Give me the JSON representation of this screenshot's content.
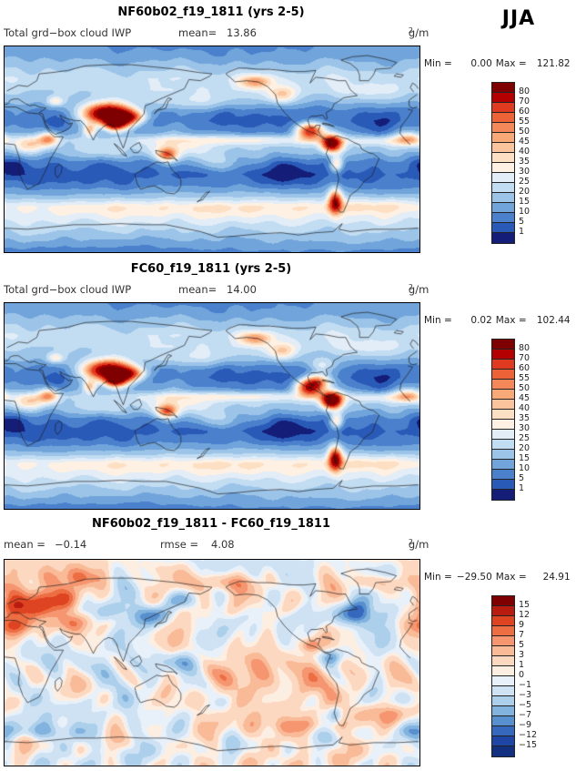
{
  "season": "JJA",
  "chart_data": [
    {
      "type": "heatmap",
      "title": "NF60b02_f19_1811 (yrs 2-5)",
      "var_label": "Total grd−box cloud IWP",
      "mean_label": "mean=",
      "mean": "13.86",
      "units_base": "g/m",
      "units_exp": "2",
      "min_label": "Min =",
      "min": "0.00",
      "max_label": "Max =",
      "max": "121.82",
      "lon_range": [
        0,
        360
      ],
      "lat_range": [
        -90,
        90
      ],
      "colorbar": {
        "levels": [
          80,
          70,
          60,
          55,
          50,
          45,
          40,
          35,
          30,
          25,
          20,
          15,
          10,
          5,
          1
        ],
        "tick_labels": [
          "80",
          "70",
          "60",
          "55",
          "50",
          "45",
          "40",
          "35",
          "30",
          "25",
          "20",
          "15",
          "10",
          "5",
          "1"
        ],
        "colors": [
          "#7f0000",
          "#b40000",
          "#e03a20",
          "#ee6238",
          "#f58858",
          "#f9a878",
          "#fbc49c",
          "#fddfc4",
          "#fef0e2",
          "#e2edf8",
          "#c2dcf2",
          "#9cc4e8",
          "#70a4da",
          "#4a80cc",
          "#2a5ab8",
          "#141e78"
        ]
      },
      "field_approx": {
        "seed": 1,
        "noise_amp": 3,
        "zonal": [
          [
            -90,
            8
          ],
          [
            -75,
            18
          ],
          [
            -62,
            26
          ],
          [
            -50,
            27
          ],
          [
            -40,
            16
          ],
          [
            -30,
            7
          ],
          [
            -22,
            4
          ],
          [
            -12,
            7
          ],
          [
            -5,
            14
          ],
          [
            0,
            18
          ],
          [
            8,
            20
          ],
          [
            15,
            12
          ],
          [
            25,
            6
          ],
          [
            32,
            7
          ],
          [
            42,
            16
          ],
          [
            52,
            22
          ],
          [
            62,
            24
          ],
          [
            72,
            18
          ],
          [
            82,
            12
          ],
          [
            90,
            10
          ]
        ],
        "hotspots": [
          [
            90,
            31,
            15,
            6,
            92
          ],
          [
            100,
            24,
            8,
            5,
            38
          ],
          [
            110,
            28,
            8,
            4,
            34
          ],
          [
            74,
            17,
            4,
            4,
            28
          ],
          [
            95,
            22,
            6,
            4,
            40
          ],
          [
            38,
            9,
            6,
            4,
            32
          ],
          [
            22,
            4,
            10,
            5,
            22
          ],
          [
            350,
            9,
            8,
            4,
            26
          ],
          [
            265,
            16,
            8,
            5,
            55
          ],
          [
            284,
            5,
            6,
            5,
            72
          ],
          [
            288,
            -13,
            4,
            5,
            30
          ],
          [
            287,
            -46,
            4,
            7,
            55
          ],
          [
            240,
            48,
            9,
            5,
            22
          ],
          [
            218,
            59,
            10,
            4,
            26
          ],
          [
            141,
            -5,
            6,
            4,
            36
          ],
          [
            44,
            42,
            5,
            3,
            18
          ],
          [
            200,
            8,
            60,
            3,
            12
          ],
          [
            330,
            7,
            20,
            3,
            10
          ],
          [
            185,
            -12,
            25,
            5,
            10
          ],
          [
            150,
            0,
            20,
            6,
            14
          ],
          [
            80,
            -3,
            15,
            5,
            8
          ],
          [
            165,
            42,
            25,
            6,
            8
          ],
          [
            315,
            50,
            20,
            6,
            8
          ],
          [
            90,
            -52,
            60,
            5,
            7
          ],
          [
            220,
            -52,
            60,
            5,
            7
          ],
          [
            320,
            -50,
            30,
            5,
            8
          ],
          [
            250,
            -18,
            25,
            9,
            -6
          ],
          [
            5,
            -14,
            12,
            6,
            -5
          ],
          [
            220,
            18,
            22,
            8,
            -5
          ],
          [
            320,
            20,
            15,
            7,
            -5
          ],
          [
            60,
            -25,
            18,
            7,
            -4
          ],
          [
            45,
            23,
            8,
            5,
            -4
          ]
        ]
      }
    },
    {
      "type": "heatmap",
      "title": "FC60_f19_1811 (yrs 2-5)",
      "var_label": "Total grd−box cloud IWP",
      "mean_label": "mean=",
      "mean": "14.00",
      "units_base": "g/m",
      "units_exp": "2",
      "min_label": "Min =",
      "min": "0.02",
      "max_label": "Max =",
      "max": "102.44",
      "lon_range": [
        0,
        360
      ],
      "lat_range": [
        -90,
        90
      ],
      "colorbar": {
        "levels": [
          80,
          70,
          60,
          55,
          50,
          45,
          40,
          35,
          30,
          25,
          20,
          15,
          10,
          5,
          1
        ],
        "tick_labels": [
          "80",
          "70",
          "60",
          "55",
          "50",
          "45",
          "40",
          "35",
          "30",
          "25",
          "20",
          "15",
          "10",
          "5",
          "1"
        ],
        "colors": [
          "#7f0000",
          "#b40000",
          "#e03a20",
          "#ee6238",
          "#f58858",
          "#f9a878",
          "#fbc49c",
          "#fddfc4",
          "#fef0e2",
          "#e2edf8",
          "#c2dcf2",
          "#9cc4e8",
          "#70a4da",
          "#4a80cc",
          "#2a5ab8",
          "#141e78"
        ]
      },
      "field_approx": {
        "seed": 1,
        "noise_amp": 3,
        "zonal": [
          [
            -90,
            8
          ],
          [
            -75,
            18
          ],
          [
            -62,
            26
          ],
          [
            -50,
            27
          ],
          [
            -40,
            16
          ],
          [
            -30,
            7
          ],
          [
            -22,
            4
          ],
          [
            -12,
            7
          ],
          [
            -5,
            14
          ],
          [
            0,
            18
          ],
          [
            8,
            20
          ],
          [
            15,
            12
          ],
          [
            25,
            6
          ],
          [
            32,
            7
          ],
          [
            42,
            16
          ],
          [
            52,
            22
          ],
          [
            62,
            24
          ],
          [
            72,
            18
          ],
          [
            82,
            12
          ],
          [
            90,
            10
          ]
        ],
        "hotspots": [
          [
            90,
            31,
            15,
            6,
            82
          ],
          [
            100,
            24,
            8,
            5,
            36
          ],
          [
            110,
            28,
            8,
            4,
            34
          ],
          [
            74,
            17,
            4,
            4,
            28
          ],
          [
            95,
            22,
            6,
            4,
            38
          ],
          [
            38,
            9,
            6,
            4,
            32
          ],
          [
            22,
            4,
            10,
            5,
            22
          ],
          [
            350,
            9,
            8,
            4,
            26
          ],
          [
            265,
            16,
            8,
            5,
            62
          ],
          [
            272,
            22,
            8,
            4,
            32
          ],
          [
            284,
            5,
            6,
            5,
            85
          ],
          [
            288,
            -13,
            4,
            5,
            30
          ],
          [
            287,
            -46,
            4,
            7,
            60
          ],
          [
            240,
            48,
            9,
            5,
            22
          ],
          [
            218,
            59,
            10,
            4,
            26
          ],
          [
            141,
            -5,
            6,
            4,
            36
          ],
          [
            44,
            42,
            5,
            3,
            18
          ],
          [
            275,
            35,
            8,
            5,
            18
          ],
          [
            200,
            8,
            60,
            3,
            12
          ],
          [
            330,
            7,
            20,
            3,
            10
          ],
          [
            185,
            -12,
            25,
            5,
            10
          ],
          [
            150,
            0,
            20,
            6,
            14
          ],
          [
            80,
            -3,
            15,
            5,
            8
          ],
          [
            165,
            42,
            25,
            6,
            8
          ],
          [
            315,
            50,
            20,
            6,
            8
          ],
          [
            90,
            -52,
            60,
            5,
            7
          ],
          [
            220,
            -52,
            60,
            5,
            7
          ],
          [
            320,
            -50,
            30,
            5,
            8
          ],
          [
            250,
            -18,
            25,
            9,
            -6
          ],
          [
            5,
            -14,
            12,
            6,
            -5
          ],
          [
            220,
            18,
            22,
            8,
            -5
          ],
          [
            320,
            20,
            15,
            7,
            -5
          ],
          [
            60,
            -25,
            18,
            7,
            -4
          ],
          [
            45,
            23,
            8,
            5,
            -4
          ]
        ]
      }
    },
    {
      "type": "heatmap",
      "title": "NF60b02_f19_1811 - FC60_f19_1811",
      "mean_label": "mean =",
      "mean": "−0.14",
      "rmse_label": "rmse =",
      "rmse": "4.08",
      "units_base": "g/m",
      "units_exp": "2",
      "min_label": "Min =",
      "min": "−29.50",
      "max_label": "Max =",
      "max": "24.91",
      "lon_range": [
        0,
        360
      ],
      "lat_range": [
        -90,
        90
      ],
      "colorbar": {
        "levels": [
          15,
          12,
          9,
          7,
          5,
          3,
          1,
          0,
          -1,
          -3,
          -5,
          -7,
          -9,
          -12,
          -15
        ],
        "tick_labels": [
          "15",
          "12",
          "9",
          "7",
          "5",
          "3",
          "1",
          "0",
          "−1",
          "−3",
          "−5",
          "−7",
          "−9",
          "−12",
          "−15"
        ],
        "colors": [
          "#7f0000",
          "#b81c10",
          "#df4422",
          "#ee6e44",
          "#f59670",
          "#f9ba98",
          "#fcd8c0",
          "#fdeee2",
          "#e8f1fa",
          "#cfe2f4",
          "#accfeb",
          "#82b2de",
          "#5890cf",
          "#3668bd",
          "#1f46a4",
          "#12307f"
        ]
      },
      "field_approx": {
        "seed": 7,
        "noise_amp": 4.5,
        "zonal": [
          [
            -90,
            0
          ],
          [
            90,
            0
          ]
        ],
        "hotspots": [
          [
            35,
            55,
            22,
            9,
            11
          ],
          [
            15,
            48,
            12,
            6,
            8
          ],
          [
            5,
            33,
            14,
            6,
            7
          ],
          [
            55,
            35,
            10,
            6,
            6
          ],
          [
            85,
            45,
            12,
            6,
            -6
          ],
          [
            125,
            42,
            14,
            7,
            -10
          ],
          [
            152,
            55,
            10,
            5,
            -7
          ],
          [
            305,
            42,
            10,
            7,
            -9
          ],
          [
            285,
            5,
            6,
            5,
            -9
          ],
          [
            287,
            -46,
            4,
            6,
            -7
          ],
          [
            265,
            15,
            6,
            4,
            6
          ],
          [
            190,
            70,
            20,
            6,
            6
          ],
          [
            60,
            75,
            20,
            6,
            5
          ],
          [
            330,
            70,
            15,
            5,
            5
          ],
          [
            200,
            -10,
            30,
            8,
            4
          ],
          [
            150,
            0,
            15,
            6,
            -5
          ],
          [
            250,
            -20,
            25,
            8,
            4
          ],
          [
            20,
            -60,
            40,
            5,
            -4
          ],
          [
            260,
            -55,
            30,
            5,
            4
          ],
          [
            330,
            -45,
            20,
            6,
            5
          ]
        ]
      }
    }
  ]
}
